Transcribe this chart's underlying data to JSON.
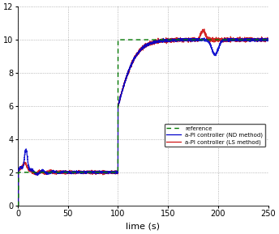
{
  "title": "",
  "xlabel": "lime (s)",
  "ylabel": "",
  "xlim": [
    0,
    250
  ],
  "ylim": [
    0,
    12
  ],
  "yticks": [
    0,
    2,
    4,
    6,
    8,
    10,
    12
  ],
  "xticks": [
    0,
    50,
    100,
    150,
    200,
    250
  ],
  "ref_value_start": 2.0,
  "ref_value_end": 10.0,
  "ref_switch_1": 0,
  "ref_switch_2": 100,
  "color_ref": "#007700",
  "color_nd": "#0000cc",
  "color_ls": "#cc0000",
  "legend_labels": [
    "reference",
    "a-PI controller (ND method)",
    "a-PI controller (LS method)"
  ],
  "background_color": "#ffffff",
  "grid_color": "#999999",
  "figsize": [
    3.44,
    2.89
  ],
  "dpi": 100
}
